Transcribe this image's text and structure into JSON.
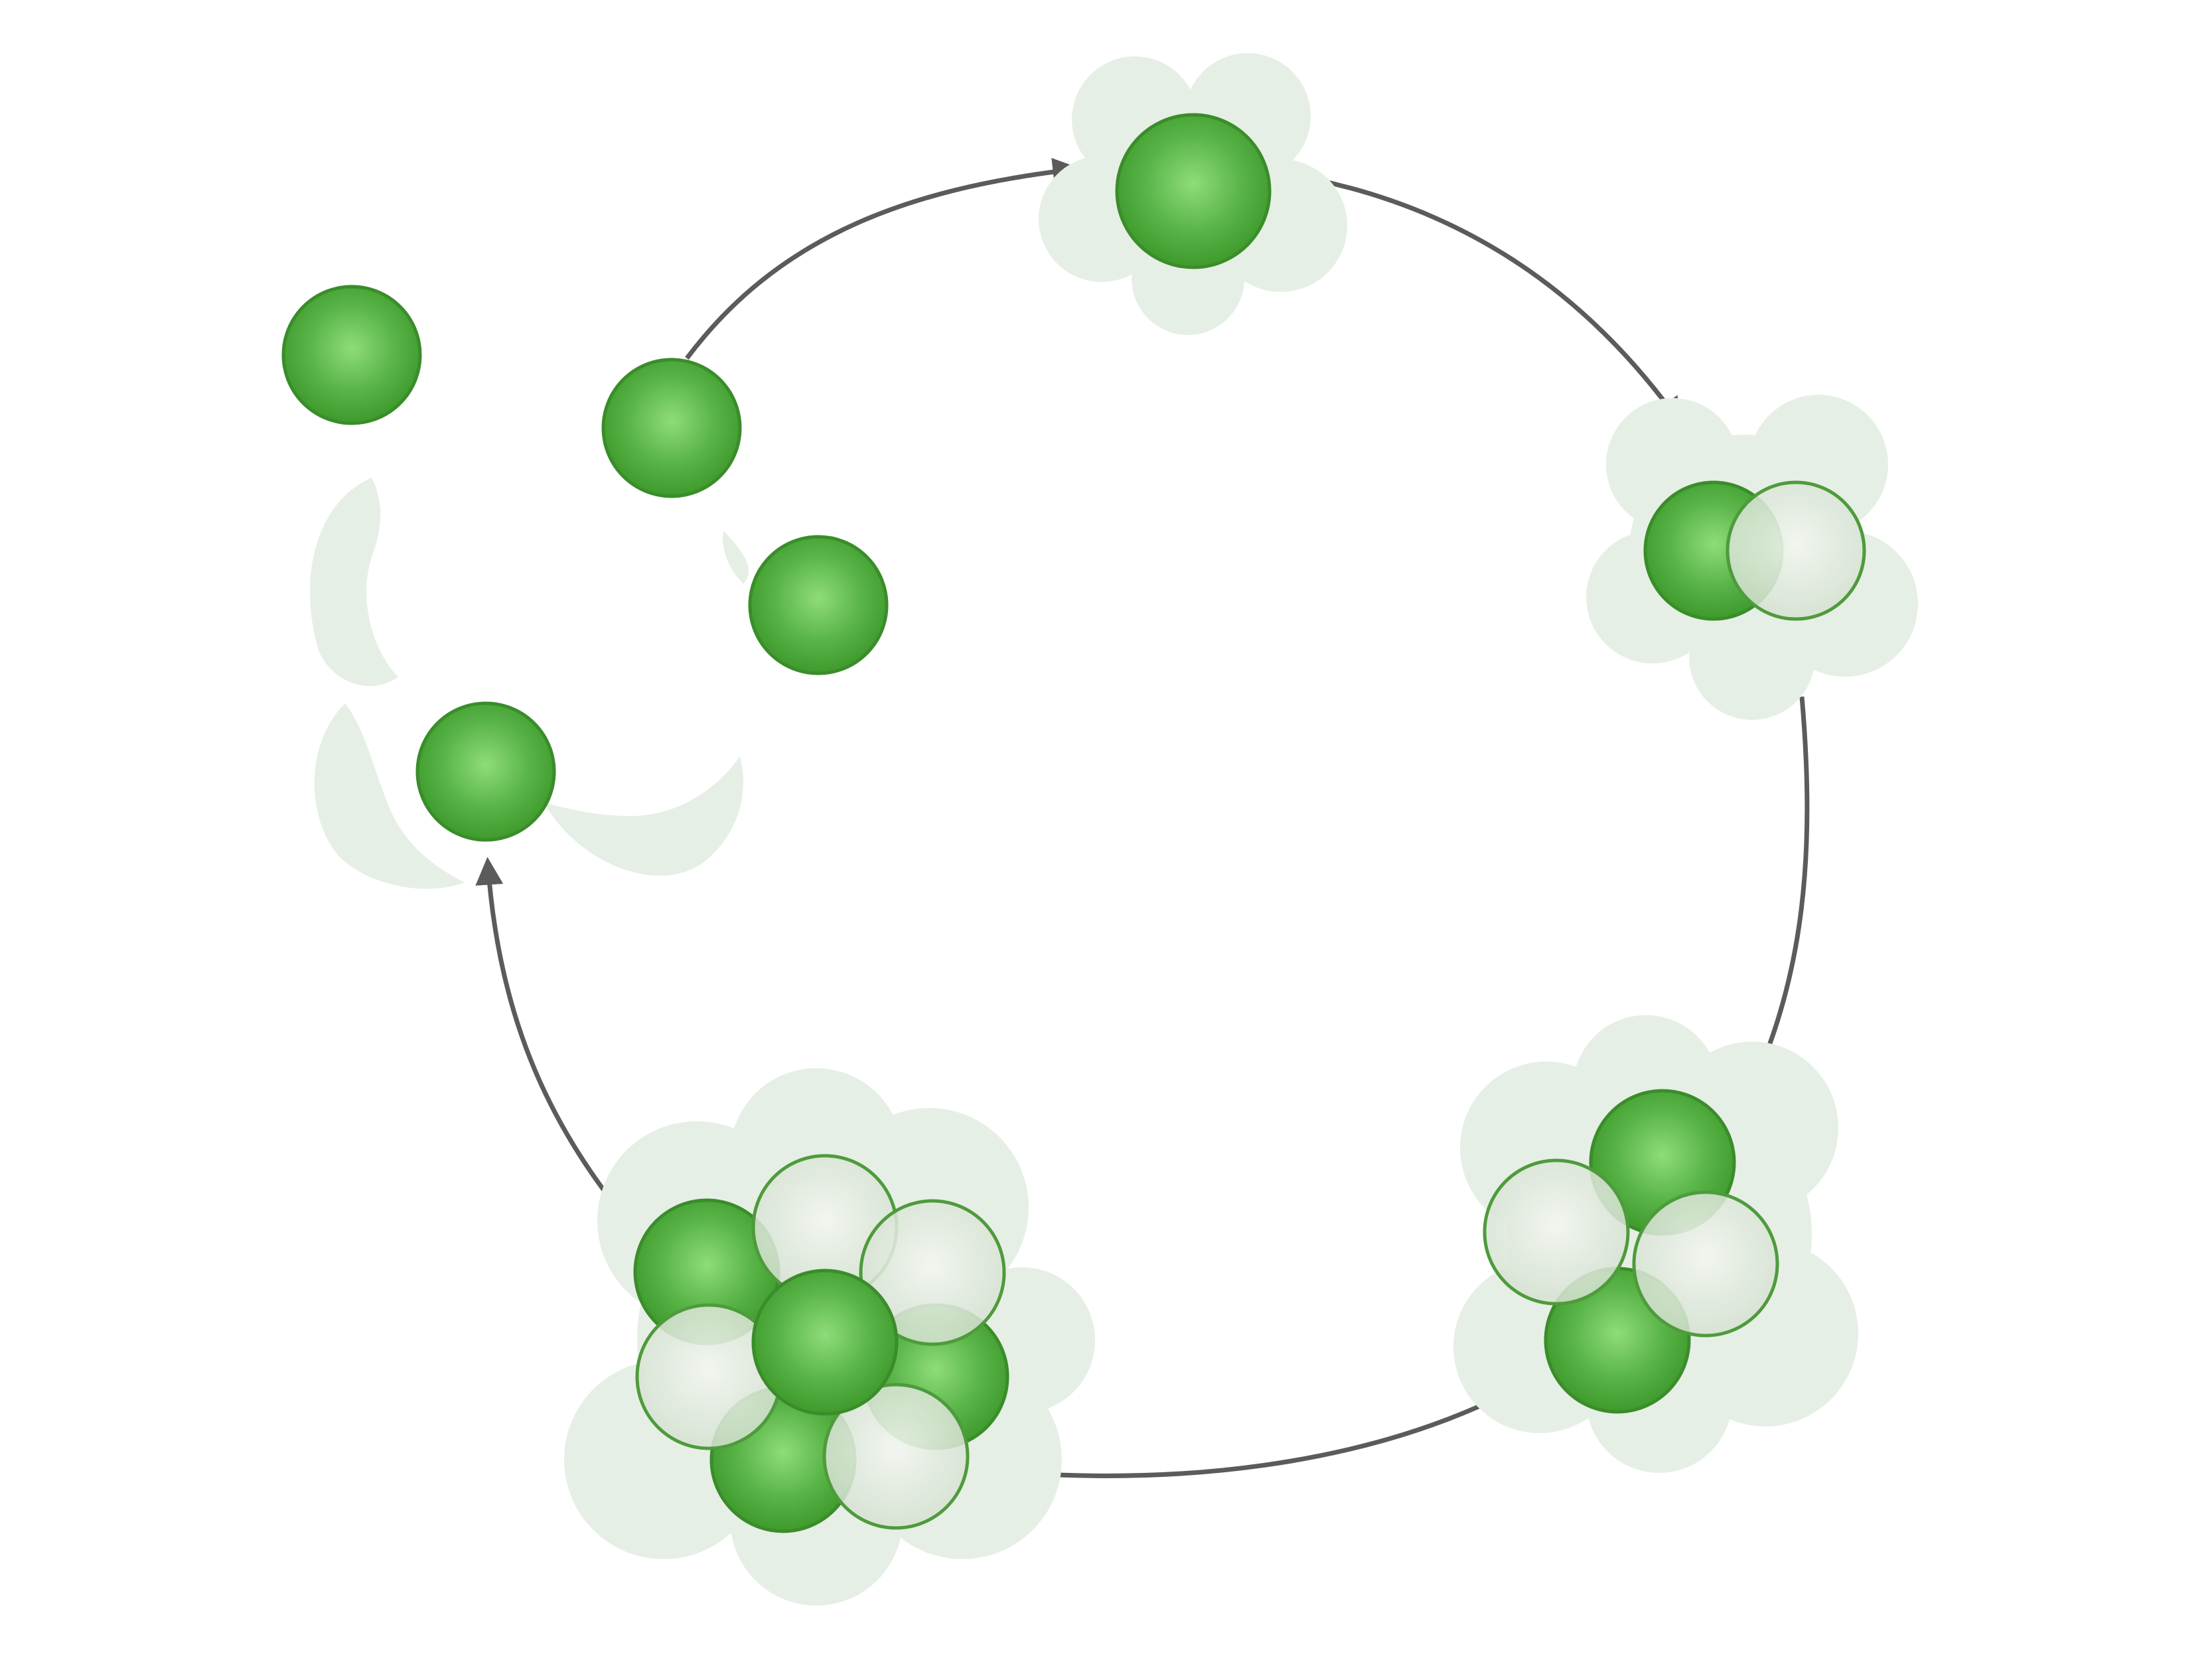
{
  "colors": {
    "background": "#ffffff",
    "cloud": "#e6efe5",
    "cell_dark": "#3f9a2c",
    "cell_mid": "#5bb64a",
    "cell_light": "#8fdc7a",
    "cell_edge": "#3a8d2a",
    "daughter_fill": "#dde6da",
    "daughter_edge": "#4e9b3c",
    "arrow": "#5b5b5b"
  },
  "stages": [
    {
      "name": "single-cell",
      "cells": 1,
      "daughters": 0
    },
    {
      "name": "two-cell",
      "cells": 1,
      "daughters": 1
    },
    {
      "name": "four-cell",
      "cells": 2,
      "daughters": 2
    },
    {
      "name": "eight-cell",
      "cells": 4,
      "daughters": 4
    },
    {
      "name": "released-cells",
      "cells": 4,
      "daughters": 0
    }
  ],
  "arrows": [
    {
      "from": "released-cells",
      "to": "single-cell"
    },
    {
      "from": "single-cell",
      "to": "two-cell"
    },
    {
      "from": "two-cell",
      "to": "four-cell"
    },
    {
      "from": "four-cell",
      "to": "eight-cell"
    },
    {
      "from": "eight-cell",
      "to": "released-cells"
    }
  ]
}
